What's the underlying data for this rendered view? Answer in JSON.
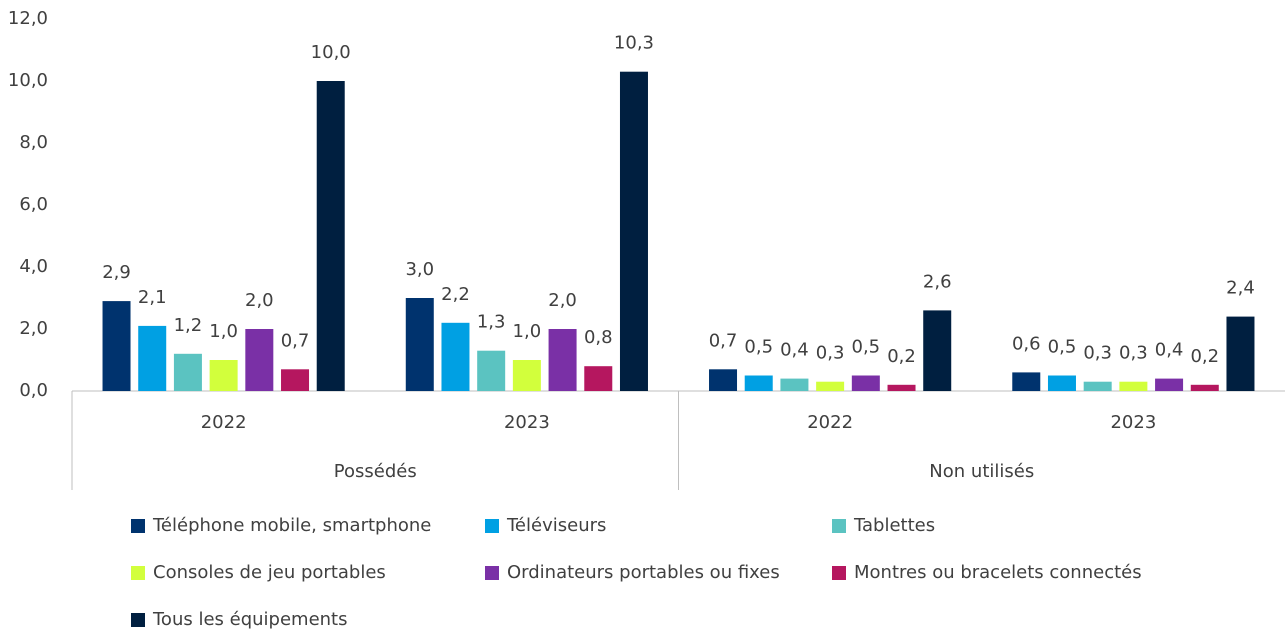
{
  "chart_data": {
    "type": "bar",
    "categories": [
      "2022",
      "2023",
      "2022",
      "2023"
    ],
    "category_groups": [
      {
        "name": "Possédés",
        "span": 2
      },
      {
        "name": "Non utilisés",
        "span": 2
      }
    ],
    "series": [
      {
        "name": "Téléphone mobile, smartphone",
        "color": "#00336e",
        "values": [
          2.9,
          3.0,
          0.7,
          0.6
        ],
        "value_labels": [
          "2,9",
          "3,0",
          "0,7",
          "0,6"
        ]
      },
      {
        "name": "Téléviseurs",
        "color": "#00a0e3",
        "values": [
          2.1,
          2.2,
          0.5,
          0.5
        ],
        "value_labels": [
          "2,1",
          "2,2",
          "0,5",
          "0,5"
        ]
      },
      {
        "name": "Tablettes",
        "color": "#5bc3c1",
        "values": [
          1.2,
          1.3,
          0.4,
          0.3
        ],
        "value_labels": [
          "1,2",
          "1,3",
          "0,4",
          "0,3"
        ]
      },
      {
        "name": "Consoles de jeu portables",
        "color": "#d2ff3c",
        "values": [
          1.0,
          1.0,
          0.3,
          0.3
        ],
        "value_labels": [
          "1,0",
          "1,0",
          "0,3",
          "0,3"
        ]
      },
      {
        "name": "Ordinateurs portables ou fixes",
        "color": "#7a30a6",
        "values": [
          2.0,
          2.0,
          0.5,
          0.4
        ],
        "value_labels": [
          "2,0",
          "2,0",
          "0,5",
          "0,4"
        ]
      },
      {
        "name": "Montres ou bracelets connectés",
        "color": "#b5175f",
        "values": [
          0.7,
          0.8,
          0.2,
          0.2
        ],
        "value_labels": [
          "0,7",
          "0,8",
          "0,2",
          "0,2"
        ]
      },
      {
        "name": "Tous les équipements",
        "color": "#001f40",
        "values": [
          10.0,
          10.3,
          2.6,
          2.4
        ],
        "value_labels": [
          "10,0",
          "10,3",
          "2,6",
          "2,4"
        ]
      }
    ],
    "ylim": [
      0,
      12
    ],
    "yticks": [
      {
        "value": 0,
        "label": "0,0"
      },
      {
        "value": 2,
        "label": "2,0"
      },
      {
        "value": 4,
        "label": "4,0"
      },
      {
        "value": 6,
        "label": "6,0"
      },
      {
        "value": 8,
        "label": "8,0"
      },
      {
        "value": 10,
        "label": "10,0"
      },
      {
        "value": 12,
        "label": "12,0"
      }
    ],
    "grid": false,
    "legend": "bottom"
  }
}
